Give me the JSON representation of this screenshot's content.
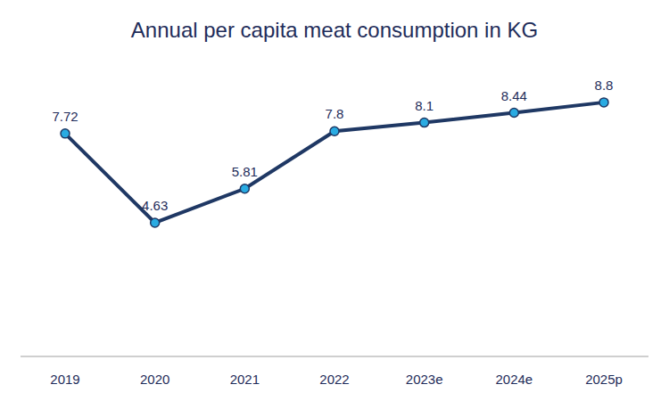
{
  "chart_data": {
    "type": "line",
    "title": "Annual per capita meat consumption in KG",
    "categories": [
      "2019",
      "2020",
      "2021",
      "2022",
      "2023e",
      "2024e",
      "2025p"
    ],
    "values": [
      7.72,
      4.63,
      5.81,
      7.8,
      8.1,
      8.44,
      8.8
    ],
    "color": "#1f3864",
    "marker": "circle",
    "ylim": [
      0,
      10
    ],
    "grid": false,
    "data_labels": true,
    "tick_labels": "x"
  }
}
